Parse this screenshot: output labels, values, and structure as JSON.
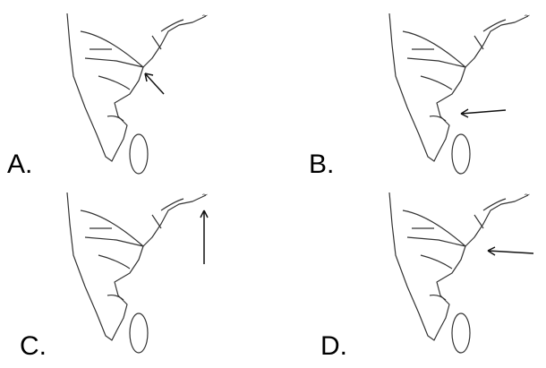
{
  "options": [
    {
      "label": "A."
    },
    {
      "label": "B."
    },
    {
      "label": "C."
    },
    {
      "label": "D."
    }
  ]
}
